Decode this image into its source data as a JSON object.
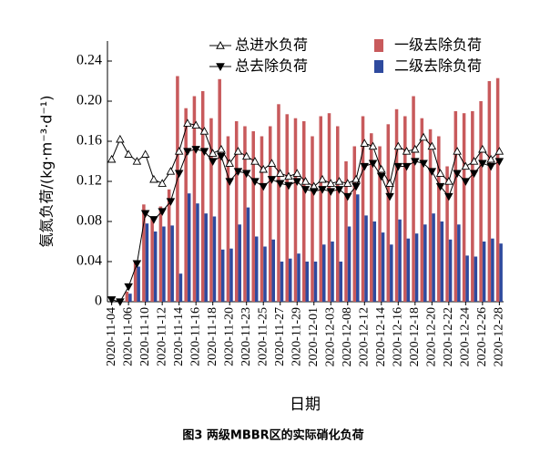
{
  "chart_data": {
    "type": "bar_line",
    "caption": "图3 两级MBBR区的实际硝化负荷",
    "x_label": "日期",
    "y_label": "氨氮负荷/(kg·m⁻³·d⁻¹)",
    "categories": [
      "2020-11-04",
      null,
      "2020-11-06",
      null,
      "2020-11-10",
      null,
      "2020-11-12",
      null,
      "2020-11-14",
      null,
      "2020-11-16",
      null,
      "2020-11-18",
      null,
      "2020-11-20",
      null,
      "2020-11-23",
      null,
      "2020-11-25",
      null,
      "2020-11-27",
      null,
      "2020-11-29",
      null,
      "2020-12-01",
      null,
      "2020-12-03",
      null,
      "2020-12-08",
      null,
      "2020-12-12",
      null,
      "2020-12-14",
      null,
      "2020-12-16",
      null,
      "2020-12-18",
      null,
      "2020-12-20",
      null,
      "2020-12-22",
      null,
      "2020-12-24",
      null,
      "2020-12-26",
      null,
      "2020-12-28"
    ],
    "ylim": [
      0,
      0.26
    ],
    "yticks": [
      0,
      0.04,
      0.08,
      0.12,
      0.16,
      {
        "value": 0.2,
        "label": "0.20"
      },
      0.24
    ],
    "series": [
      {
        "name": "一级去除负荷",
        "kind": "bar",
        "color": "#c85a5c",
        "values": [
          0,
          0,
          0.01,
          0.04,
          0.097,
          0.085,
          0.095,
          0.112,
          0.225,
          0.193,
          0.205,
          0.21,
          0.183,
          0.222,
          0.165,
          0.18,
          0.175,
          0.17,
          0.165,
          0.175,
          0.197,
          0.187,
          0.183,
          0.18,
          0.165,
          0.185,
          0.188,
          0.175,
          0.14,
          0.155,
          0.185,
          0.168,
          0.155,
          0.177,
          0.192,
          0.185,
          0.205,
          0.183,
          0.172,
          0.165,
          0.135,
          0.19,
          0.188,
          0.19,
          0.2,
          0.22,
          0.223
        ]
      },
      {
        "name": "二级去除负荷",
        "kind": "bar",
        "color": "#2e4a9e",
        "values": [
          0,
          0,
          0.008,
          0.035,
          0.078,
          0.07,
          0.075,
          0.076,
          0.028,
          0.108,
          0.098,
          0.088,
          0.085,
          0.052,
          0.053,
          0.077,
          0.094,
          0.065,
          0.055,
          0.062,
          0.04,
          0.043,
          0.048,
          0.04,
          0.04,
          0.057,
          0.06,
          0.04,
          0.075,
          0.107,
          0.086,
          0.08,
          0.069,
          0.057,
          0.082,
          0.063,
          0.068,
          0.077,
          0.088,
          0.08,
          0.062,
          0.077,
          0.046,
          0.045,
          0.06,
          0.063,
          0.058
        ]
      },
      {
        "name": "总进水负荷",
        "kind": "line",
        "marker": "open",
        "color": "#000000",
        "values": [
          0.142,
          0.162,
          0.147,
          0.14,
          0.147,
          0.122,
          0.118,
          0.13,
          0.15,
          0.178,
          0.176,
          0.17,
          0.148,
          0.152,
          0.138,
          0.15,
          0.145,
          0.14,
          0.132,
          0.138,
          0.128,
          0.125,
          0.128,
          0.12,
          0.115,
          0.122,
          0.118,
          0.12,
          0.118,
          0.122,
          0.158,
          0.155,
          0.132,
          0.118,
          0.155,
          0.15,
          0.152,
          0.164,
          0.155,
          0.128,
          0.12,
          0.15,
          0.135,
          0.14,
          0.152,
          0.142,
          0.15
        ]
      },
      {
        "name": "总去除负荷",
        "kind": "line",
        "marker": "filled",
        "color": "#000000",
        "values": [
          0.002,
          0,
          0.015,
          0.038,
          0.088,
          0.082,
          0.09,
          0.1,
          0.128,
          0.15,
          0.152,
          0.15,
          0.14,
          0.145,
          0.12,
          0.13,
          0.128,
          0.12,
          0.115,
          0.122,
          0.118,
          0.116,
          0.12,
          0.112,
          0.11,
          0.112,
          0.11,
          0.112,
          0.105,
          0.115,
          0.135,
          0.138,
          0.125,
          0.105,
          0.135,
          0.135,
          0.14,
          0.138,
          0.13,
          0.115,
          0.105,
          0.128,
          0.12,
          0.128,
          0.138,
          0.135,
          0.14
        ]
      }
    ]
  }
}
